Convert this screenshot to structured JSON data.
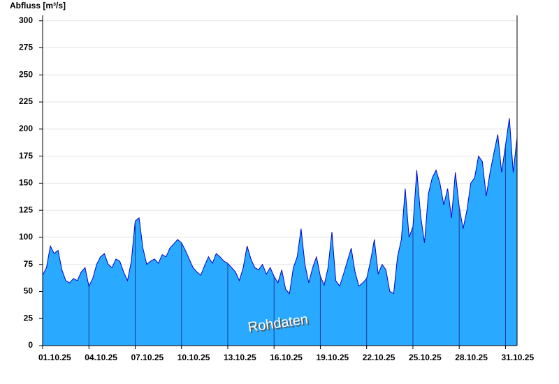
{
  "chart_data": {
    "type": "area",
    "y_label": "Abfluss [m³/s]",
    "annotation": "Rohdaten",
    "categories": [
      "01.10.25",
      null,
      null,
      null,
      null,
      null,
      null,
      null,
      null,
      null,
      null,
      null,
      "04.10.25",
      null,
      null,
      null,
      null,
      null,
      null,
      null,
      null,
      null,
      null,
      null,
      "07.10.25",
      null,
      null,
      null,
      null,
      null,
      null,
      null,
      null,
      null,
      null,
      null,
      "10.10.25",
      null,
      null,
      null,
      null,
      null,
      null,
      null,
      null,
      null,
      null,
      null,
      "13.10.25",
      null,
      null,
      null,
      null,
      null,
      null,
      null,
      null,
      null,
      null,
      null,
      "16.10.25",
      null,
      null,
      null,
      null,
      null,
      null,
      null,
      null,
      null,
      null,
      null,
      "19.10.25",
      null,
      null,
      null,
      null,
      null,
      null,
      null,
      null,
      null,
      null,
      null,
      "22.10.25",
      null,
      null,
      null,
      null,
      null,
      null,
      null,
      null,
      null,
      null,
      null,
      "25.10.25",
      null,
      null,
      null,
      null,
      null,
      null,
      null,
      null,
      null,
      null,
      null,
      "28.10.25",
      null,
      null,
      null,
      null,
      null,
      null,
      null,
      null,
      null,
      null,
      null,
      "31.10.25",
      null,
      null,
      null
    ],
    "values": [
      65,
      72,
      92,
      85,
      88,
      70,
      60,
      58,
      62,
      60,
      68,
      72,
      55,
      62,
      75,
      82,
      85,
      75,
      72,
      80,
      78,
      68,
      60,
      78,
      115,
      118,
      90,
      75,
      78,
      80,
      76,
      84,
      82,
      90,
      94,
      98,
      95,
      88,
      80,
      72,
      68,
      65,
      74,
      82,
      76,
      85,
      82,
      78,
      76,
      72,
      68,
      60,
      72,
      92,
      80,
      72,
      70,
      75,
      66,
      72,
      64,
      58,
      70,
      52,
      48,
      72,
      82,
      108,
      75,
      58,
      72,
      82,
      64,
      56,
      72,
      105,
      60,
      55,
      66,
      78,
      90,
      68,
      55,
      58,
      62,
      78,
      98,
      66,
      75,
      70,
      50,
      48,
      82,
      98,
      145,
      100,
      110,
      162,
      120,
      95,
      140,
      155,
      162,
      150,
      130,
      145,
      118,
      160,
      128,
      108,
      125,
      150,
      155,
      175,
      170,
      138,
      160,
      178,
      195,
      160,
      185,
      210,
      160,
      192
    ],
    "color": "#29a9ff",
    "line_color": "#0000cc",
    "ylim": [
      0,
      305
    ],
    "yticks": [
      0,
      25,
      50,
      75,
      100,
      125,
      150,
      175,
      200,
      225,
      250,
      275,
      300
    ],
    "grid": true
  }
}
